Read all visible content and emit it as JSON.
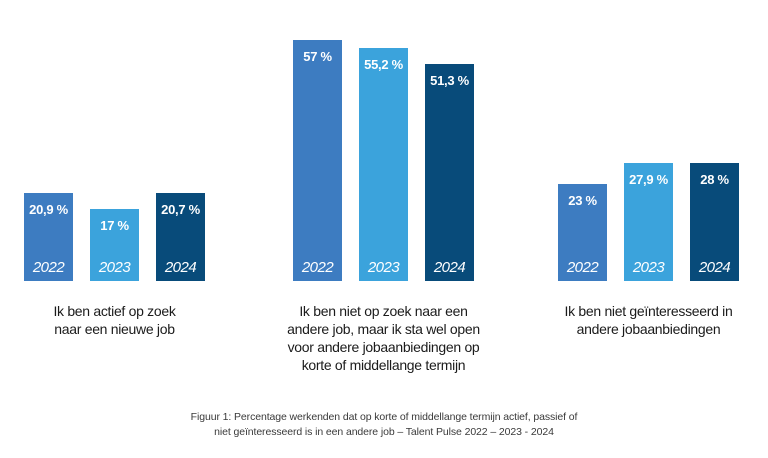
{
  "chart_data": {
    "type": "bar",
    "unit": "%",
    "ylim": [
      0,
      60
    ],
    "grid": false,
    "legend_position": "none",
    "axes_visible": false,
    "year_colors": {
      "2022": "#3D7CC1",
      "2023": "#3BA3DC",
      "2024": "#084B7A"
    },
    "groups": [
      {
        "label_lines": [
          "Ik ben actief op zoek",
          "naar een nieuwe job"
        ],
        "bars": [
          {
            "year": "2022",
            "value": 20.9,
            "display": "20,9 %"
          },
          {
            "year": "2023",
            "value": 17,
            "display": "17 %"
          },
          {
            "year": "2024",
            "value": 20.7,
            "display": "20,7 %"
          }
        ]
      },
      {
        "label_lines": [
          "Ik ben niet op zoek naar een",
          "andere job, maar ik sta wel open",
          "voor andere jobaanbiedingen op",
          "korte of middellange termijn"
        ],
        "bars": [
          {
            "year": "2022",
            "value": 57,
            "display": "57 %"
          },
          {
            "year": "2023",
            "value": 55.2,
            "display": "55,2 %"
          },
          {
            "year": "2024",
            "value": 51.3,
            "display": "51,3 %"
          }
        ]
      },
      {
        "label_lines": [
          "Ik ben niet geïnteresseerd in",
          "andere jobaanbiedingen"
        ],
        "bars": [
          {
            "year": "2022",
            "value": 23,
            "display": "23 %"
          },
          {
            "year": "2023",
            "value": 27.9,
            "display": "27,9 %"
          },
          {
            "year": "2024",
            "value": 28,
            "display": "28 %"
          }
        ]
      }
    ]
  },
  "caption": {
    "line1": "Figuur 1: Percentage werkenden dat op korte of middellange termijn actief, passief of",
    "line2": "niet geïnteresseerd is in een andere job – Talent Pulse 2022 – 2023 - 2024"
  }
}
